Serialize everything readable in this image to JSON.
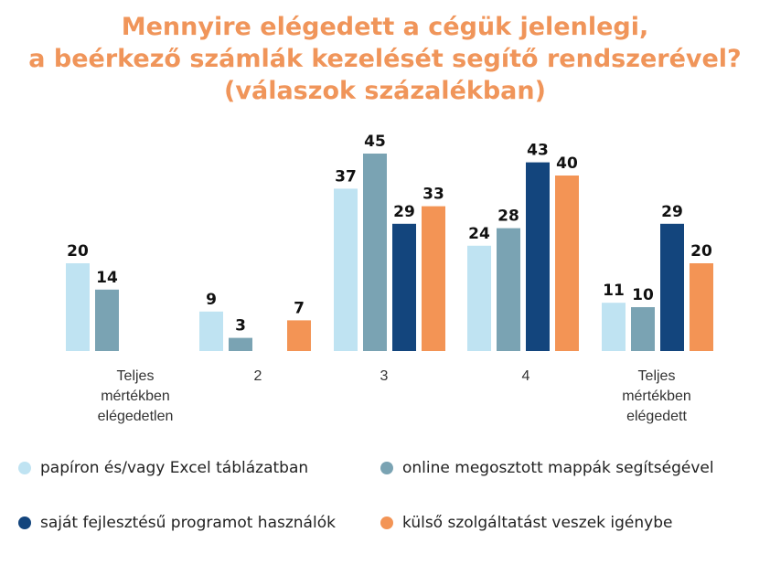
{
  "chart_data": {
    "type": "bar",
    "title_lines": [
      "Mennyire elégedett a cégük jelenlegi,",
      "a beérkező számlák kezelését segítő rendszerével?",
      "(válaszok százalékban)"
    ],
    "categories": [
      [
        "Teljes",
        "mértékben",
        "elégedetlen"
      ],
      [
        "2"
      ],
      [
        "3"
      ],
      [
        "4"
      ],
      [
        "Teljes",
        "mértékben",
        "elégedett"
      ]
    ],
    "series": [
      {
        "name": "papíron és/vagy Excel táblázatban",
        "color": "#bfe3f2",
        "values": [
          20,
          9,
          37,
          24,
          11
        ]
      },
      {
        "name": "online megosztott mappák segítségével",
        "color": "#7aa3b3",
        "values": [
          14,
          3,
          45,
          28,
          10
        ]
      },
      {
        "name": "saját fejlesztésű programot használók",
        "color": "#13457d",
        "values": [
          null,
          null,
          29,
          43,
          29
        ]
      },
      {
        "name": "külső szolgáltatást veszek igénybe",
        "color": "#f39455",
        "values": [
          null,
          7,
          33,
          40,
          20
        ]
      }
    ],
    "ylim": [
      0,
      45
    ],
    "grid": false,
    "legend_position": "bottom",
    "title_color": "#f0955a"
  }
}
